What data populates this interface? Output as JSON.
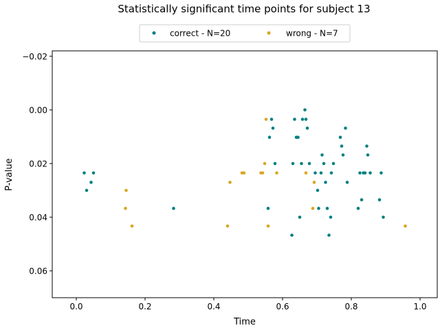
{
  "chart_data": {
    "type": "scatter",
    "title": "Statistically significant time points for subject 13",
    "xlabel": "Time",
    "ylabel": "P-value",
    "xlim": [
      -0.07,
      1.05
    ],
    "ylim": [
      0.07,
      -0.022
    ],
    "y_inverted": true,
    "x_ticks": [
      "0.0",
      "0.2",
      "0.4",
      "0.6",
      "0.8",
      "1.0"
    ],
    "y_ticks": [
      "−0.02",
      "0.00",
      "0.02",
      "0.04",
      "0.06"
    ],
    "grid": false,
    "legend_placement": "top-center, outside plot",
    "series": [
      {
        "name": "correct - N=20",
        "color": "#008080",
        "points": [
          [
            0.023,
            0.0235
          ],
          [
            0.03,
            0.03
          ],
          [
            0.043,
            0.027
          ],
          [
            0.05,
            0.0235
          ],
          [
            0.283,
            0.0367
          ],
          [
            0.558,
            0.0367
          ],
          [
            0.562,
            0.0102
          ],
          [
            0.568,
            0.0035
          ],
          [
            0.572,
            0.0068
          ],
          [
            0.578,
            0.02
          ],
          [
            0.627,
            0.0467
          ],
          [
            0.63,
            0.02
          ],
          [
            0.635,
            0.0035
          ],
          [
            0.64,
            0.0102
          ],
          [
            0.645,
            0.0102
          ],
          [
            0.65,
            0.04
          ],
          [
            0.655,
            0.02
          ],
          [
            0.658,
            0.0035
          ],
          [
            0.665,
            0.0
          ],
          [
            0.668,
            0.0035
          ],
          [
            0.672,
            0.0068
          ],
          [
            0.678,
            0.02
          ],
          [
            0.695,
            0.0235
          ],
          [
            0.702,
            0.03
          ],
          [
            0.705,
            0.0367
          ],
          [
            0.712,
            0.0235
          ],
          [
            0.715,
            0.0168
          ],
          [
            0.72,
            0.02
          ],
          [
            0.725,
            0.027
          ],
          [
            0.73,
            0.0367
          ],
          [
            0.735,
            0.0467
          ],
          [
            0.74,
            0.04
          ],
          [
            0.742,
            0.0235
          ],
          [
            0.748,
            0.02
          ],
          [
            0.768,
            0.0102
          ],
          [
            0.772,
            0.0135
          ],
          [
            0.776,
            0.0168
          ],
          [
            0.783,
            0.0068
          ],
          [
            0.788,
            0.027
          ],
          [
            0.82,
            0.0367
          ],
          [
            0.825,
            0.0235
          ],
          [
            0.83,
            0.0335
          ],
          [
            0.835,
            0.0235
          ],
          [
            0.84,
            0.0235
          ],
          [
            0.845,
            0.0135
          ],
          [
            0.848,
            0.0168
          ],
          [
            0.855,
            0.0235
          ],
          [
            0.882,
            0.0335
          ],
          [
            0.887,
            0.0235
          ],
          [
            0.893,
            0.04
          ]
        ]
      },
      {
        "name": "wrong - N=7",
        "color": "#daa520",
        "points": [
          [
            0.143,
            0.0367
          ],
          [
            0.145,
            0.03
          ],
          [
            0.162,
            0.0433
          ],
          [
            0.44,
            0.0433
          ],
          [
            0.447,
            0.027
          ],
          [
            0.482,
            0.0235
          ],
          [
            0.488,
            0.0235
          ],
          [
            0.537,
            0.0235
          ],
          [
            0.542,
            0.0235
          ],
          [
            0.548,
            0.02
          ],
          [
            0.552,
            0.0035
          ],
          [
            0.558,
            0.0433
          ],
          [
            0.583,
            0.0235
          ],
          [
            0.668,
            0.0235
          ],
          [
            0.688,
            0.0367
          ],
          [
            0.692,
            0.027
          ],
          [
            0.957,
            0.0433
          ]
        ]
      }
    ]
  }
}
